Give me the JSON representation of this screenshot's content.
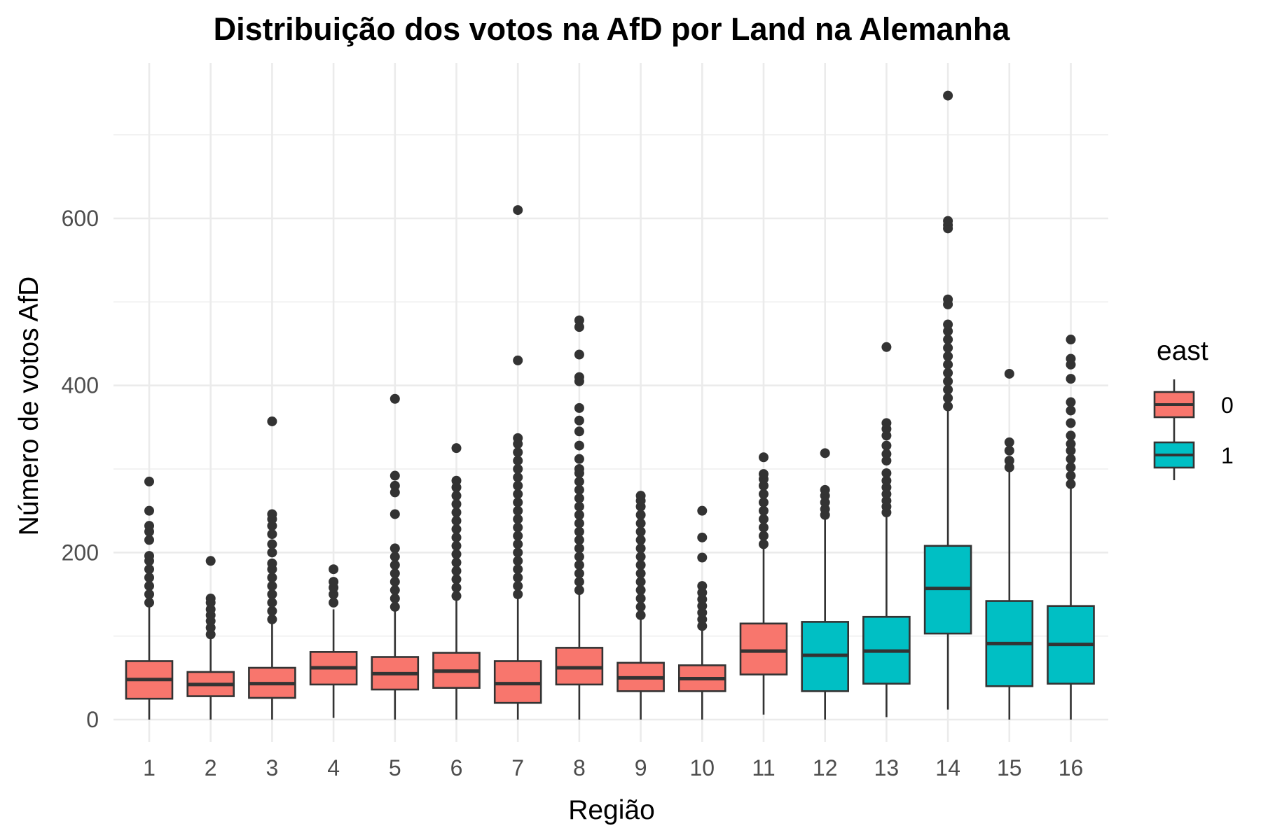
{
  "chart_data": {
    "type": "boxplot",
    "title": "Distribuição dos votos na AfD por Land na Alemanha",
    "xlabel": "Região",
    "ylabel": "Número de votos AfD",
    "categories": [
      "1",
      "2",
      "3",
      "4",
      "5",
      "6",
      "7",
      "8",
      "9",
      "10",
      "11",
      "12",
      "13",
      "14",
      "15",
      "16"
    ],
    "ylim": [
      -30,
      775
    ],
    "yticks": [
      0,
      200,
      400,
      600
    ],
    "ytick_labels": [
      "0",
      "200",
      "400",
      "600"
    ],
    "y_minor_grid": [
      100,
      300,
      500,
      700
    ],
    "grid": true,
    "legend": {
      "title": "east",
      "position": "right",
      "entries": [
        {
          "label": "0",
          "color": "#F8766D"
        },
        {
          "label": "1",
          "color": "#00BFC4"
        }
      ]
    },
    "boxes": [
      {
        "category": "1",
        "east": "0",
        "min": 0,
        "q1": 25,
        "median": 48,
        "q3": 70,
        "max": 135,
        "outliers": [
          140,
          150,
          160,
          170,
          180,
          190,
          196,
          215,
          225,
          232,
          250,
          285
        ]
      },
      {
        "category": "2",
        "east": "0",
        "min": 0,
        "q1": 28,
        "median": 42,
        "q3": 57,
        "max": 98,
        "outliers": [
          102,
          110,
          118,
          125,
          132,
          140,
          145,
          190
        ]
      },
      {
        "category": "3",
        "east": "0",
        "min": 0,
        "q1": 26,
        "median": 43,
        "q3": 62,
        "max": 115,
        "outliers": [
          120,
          130,
          140,
          150,
          160,
          170,
          180,
          187,
          200,
          210,
          222,
          232,
          240,
          246,
          357
        ]
      },
      {
        "category": "4",
        "east": "0",
        "min": 2,
        "q1": 42,
        "median": 62,
        "q3": 81,
        "max": 132,
        "outliers": [
          140,
          150,
          158,
          165,
          180
        ]
      },
      {
        "category": "5",
        "east": "0",
        "min": 0,
        "q1": 36,
        "median": 55,
        "q3": 75,
        "max": 132,
        "outliers": [
          135,
          145,
          155,
          165,
          175,
          185,
          195,
          205,
          246,
          272,
          280,
          292,
          384
        ]
      },
      {
        "category": "6",
        "east": "0",
        "min": 0,
        "q1": 38,
        "median": 58,
        "q3": 80,
        "max": 143,
        "outliers": [
          148,
          158,
          168,
          178,
          188,
          198,
          208,
          218,
          228,
          238,
          248,
          258,
          268,
          278,
          286,
          325
        ]
      },
      {
        "category": "7",
        "east": "0",
        "min": 0,
        "q1": 20,
        "median": 43,
        "q3": 70,
        "max": 145,
        "outliers": [
          150,
          160,
          170,
          180,
          190,
          200,
          210,
          220,
          230,
          240,
          250,
          260,
          270,
          280,
          290,
          300,
          310,
          320,
          330,
          337,
          430,
          610
        ]
      },
      {
        "category": "8",
        "east": "0",
        "min": 0,
        "q1": 42,
        "median": 62,
        "q3": 86,
        "max": 150,
        "outliers": [
          155,
          165,
          175,
          185,
          195,
          205,
          215,
          225,
          235,
          245,
          255,
          265,
          275,
          285,
          295,
          300,
          312,
          328,
          345,
          358,
          373,
          405,
          410,
          437,
          470,
          478
        ]
      },
      {
        "category": "9",
        "east": "0",
        "min": 0,
        "q1": 34,
        "median": 50,
        "q3": 68,
        "max": 120,
        "outliers": [
          125,
          135,
          145,
          155,
          165,
          175,
          185,
          195,
          205,
          215,
          225,
          235,
          245,
          255,
          262,
          268
        ]
      },
      {
        "category": "10",
        "east": "0",
        "min": 0,
        "q1": 34,
        "median": 49,
        "q3": 65,
        "max": 108,
        "outliers": [
          112,
          120,
          128,
          136,
          144,
          152,
          160,
          194,
          218,
          250
        ]
      },
      {
        "category": "11",
        "east": "0",
        "min": 6,
        "q1": 54,
        "median": 82,
        "q3": 115,
        "max": 205,
        "outliers": [
          210,
          220,
          230,
          240,
          250,
          260,
          270,
          280,
          288,
          294,
          314
        ]
      },
      {
        "category": "12",
        "east": "1",
        "min": 0,
        "q1": 34,
        "median": 77,
        "q3": 117,
        "max": 240,
        "outliers": [
          245,
          252,
          260,
          268,
          275,
          319
        ]
      },
      {
        "category": "13",
        "east": "1",
        "min": 3,
        "q1": 43,
        "median": 82,
        "q3": 123,
        "max": 243,
        "outliers": [
          248,
          255,
          262,
          270,
          278,
          286,
          295,
          310,
          318,
          328,
          340,
          348,
          355,
          446
        ]
      },
      {
        "category": "14",
        "east": "1",
        "min": 12,
        "q1": 103,
        "median": 157,
        "q3": 208,
        "max": 370,
        "outliers": [
          375,
          385,
          395,
          405,
          415,
          425,
          435,
          445,
          455,
          465,
          473,
          497,
          503,
          588,
          592,
          597,
          747
        ]
      },
      {
        "category": "15",
        "east": "1",
        "min": 0,
        "q1": 40,
        "median": 91,
        "q3": 142,
        "max": 298,
        "outliers": [
          302,
          310,
          322,
          332,
          414
        ]
      },
      {
        "category": "16",
        "east": "1",
        "min": 0,
        "q1": 43,
        "median": 90,
        "q3": 136,
        "max": 278,
        "outliers": [
          282,
          292,
          302,
          312,
          322,
          330,
          340,
          355,
          370,
          380,
          408,
          425,
          432,
          455
        ]
      }
    ]
  }
}
